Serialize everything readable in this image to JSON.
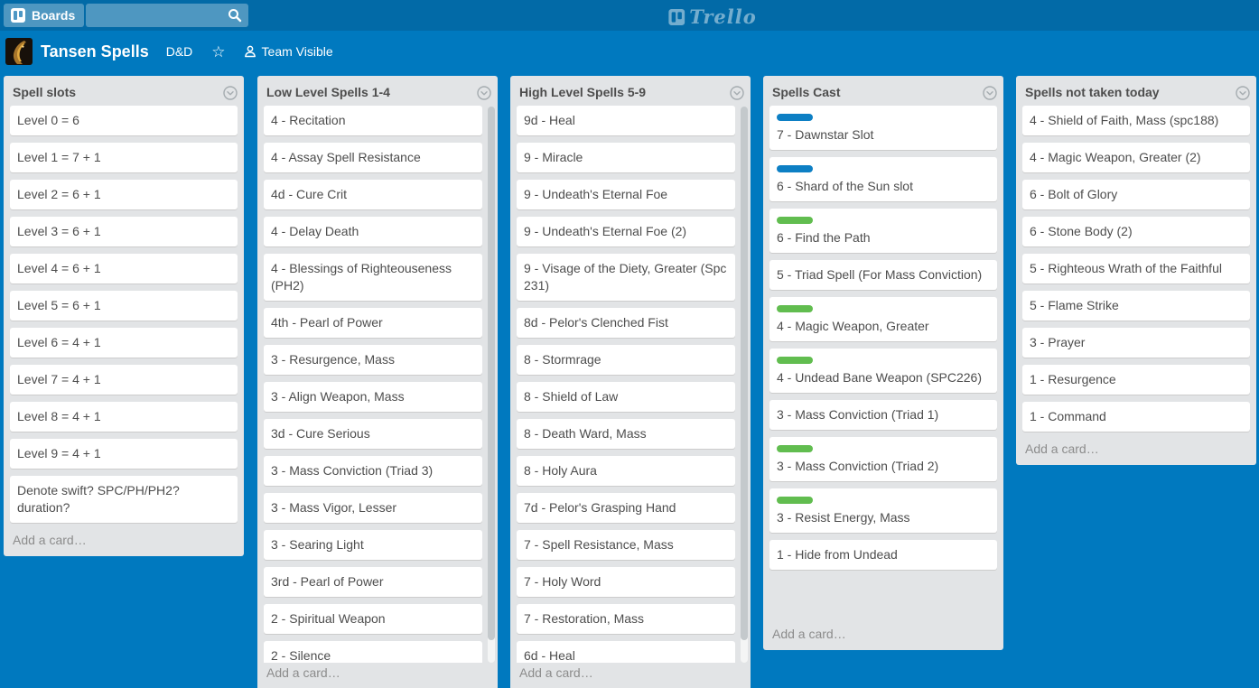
{
  "topbar": {
    "boards_button_label": "Boards",
    "search_value": "",
    "logo_text": "Trello"
  },
  "board_header": {
    "title": "Tansen Spells",
    "team_name": "D&D",
    "star_icon": "☆",
    "visibility_label": "Team Visible"
  },
  "colors": {
    "topbar_bg": "#026aa7",
    "board_bg": "#0079bf",
    "list_bg": "#e2e4e6",
    "label_blue": "#0d7fc4",
    "label_green": "#61bd4f"
  },
  "add_card_label": "Add a card…",
  "lists": [
    {
      "title": "Spell slots",
      "cards": [
        {
          "text": "Level 0 = 6"
        },
        {
          "text": "Level 1 = 7 + 1"
        },
        {
          "text": "Level 2 = 6 + 1"
        },
        {
          "text": "Level 3 = 6 + 1"
        },
        {
          "text": "Level 4 = 6 + 1"
        },
        {
          "text": "Level 5 = 6 + 1"
        },
        {
          "text": "Level 6 = 4 + 1"
        },
        {
          "text": "Level 7 = 4 + 1"
        },
        {
          "text": "Level 8 = 4 + 1"
        },
        {
          "text": "Level 9 = 4 + 1"
        },
        {
          "text": "Denote swift? SPC/PH/PH2? duration?"
        }
      ]
    },
    {
      "title": "Low Level Spells 1-4",
      "scrollable": true,
      "cards": [
        {
          "text": "4 - Recitation"
        },
        {
          "text": "4 - Assay Spell Resistance"
        },
        {
          "text": "4d - Cure Crit"
        },
        {
          "text": "4 - Delay Death"
        },
        {
          "text": "4 - Blessings of Righteouseness (PH2)"
        },
        {
          "text": "4th - Pearl of Power"
        },
        {
          "text": "3 - Resurgence, Mass"
        },
        {
          "text": "3 - Align Weapon, Mass"
        },
        {
          "text": "3d - Cure Serious"
        },
        {
          "text": "3 - Mass Conviction (Triad 3)"
        },
        {
          "text": "3 - Mass Vigor, Lesser"
        },
        {
          "text": "3 - Searing Light"
        },
        {
          "text": "3rd - Pearl of Power"
        },
        {
          "text": "2 - Spiritual Weapon"
        },
        {
          "text": "2 - Silence"
        }
      ]
    },
    {
      "title": "High Level Spells 5-9",
      "scrollable": true,
      "cards": [
        {
          "text": "9d - Heal"
        },
        {
          "text": "9 - Miracle"
        },
        {
          "text": "9 - Undeath's Eternal Foe"
        },
        {
          "text": "9 - Undeath's Eternal Foe (2)"
        },
        {
          "text": "9 - Visage of the Diety, Greater (Spc 231)"
        },
        {
          "text": "8d - Pelor's Clenched Fist"
        },
        {
          "text": "8 - Stormrage"
        },
        {
          "text": "8 - Shield of Law"
        },
        {
          "text": "8 - Death Ward, Mass"
        },
        {
          "text": "8 - Holy Aura"
        },
        {
          "text": "7d - Pelor's Grasping Hand"
        },
        {
          "text": "7 - Spell Resistance, Mass"
        },
        {
          "text": "7 - Holy Word"
        },
        {
          "text": "7 - Restoration, Mass"
        },
        {
          "text": "6d - Heal"
        }
      ]
    },
    {
      "title": "Spells Cast",
      "cards": [
        {
          "text": "7 - Dawnstar Slot",
          "label": "blue"
        },
        {
          "text": "6 - Shard of the Sun slot",
          "label": "blue"
        },
        {
          "text": "6 - Find the Path",
          "label": "green"
        },
        {
          "text": "5 - Triad Spell (For Mass Conviction)"
        },
        {
          "text": "4 - Magic Weapon, Greater",
          "label": "green"
        },
        {
          "text": "4 - Undead Bane Weapon (SPC226)",
          "label": "green"
        },
        {
          "text": "3 - Mass Conviction (Triad 1)"
        },
        {
          "text": "3 - Mass Conviction (Triad 2)",
          "label": "green"
        },
        {
          "text": "3 - Resist Energy, Mass",
          "label": "green"
        },
        {
          "text": "1 - Hide from Undead"
        }
      ]
    },
    {
      "title": "Spells not taken today",
      "cards": [
        {
          "text": "4 - Shield of Faith, Mass (spc188)"
        },
        {
          "text": "4 - Magic Weapon, Greater (2)"
        },
        {
          "text": "6 - Bolt of Glory"
        },
        {
          "text": "6 - Stone Body (2)"
        },
        {
          "text": "5 - Righteous Wrath of the Faithful"
        },
        {
          "text": "5 - Flame Strike"
        },
        {
          "text": "3 - Prayer"
        },
        {
          "text": "1 - Resurgence"
        },
        {
          "text": "1 - Command"
        }
      ]
    }
  ]
}
